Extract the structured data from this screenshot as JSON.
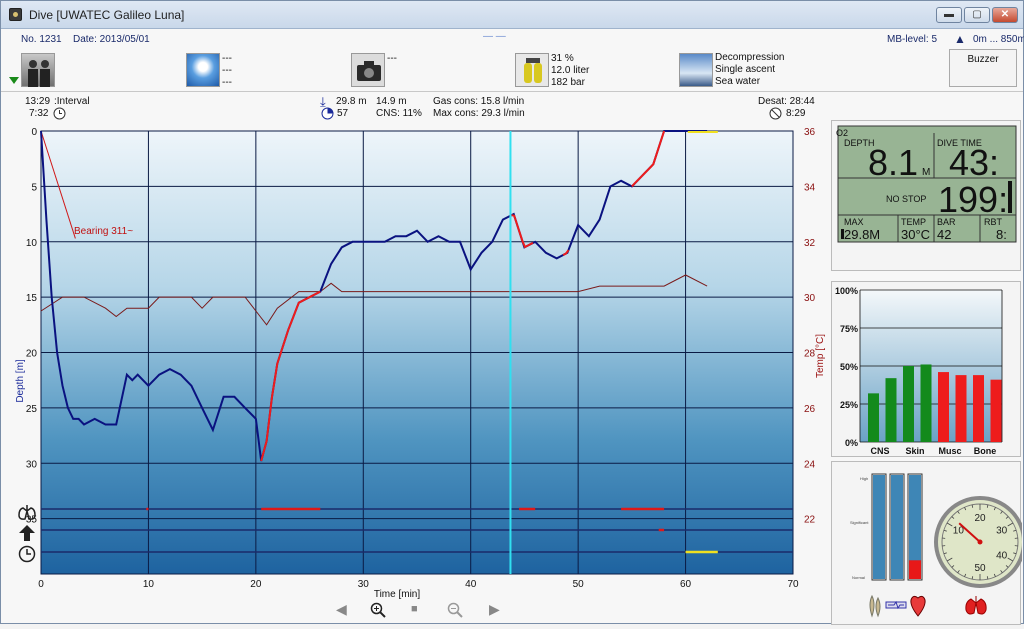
{
  "window": {
    "title": "Dive  [UWATEC Galileo Luna]",
    "minimize": "▬",
    "maximize": "▢",
    "close": "✕"
  },
  "header": {
    "dive_no": "No. 1231",
    "date": "Date: 2013/05/01",
    "center_marks": "—   —",
    "mb_level": "MB-level: 5",
    "altitude": "0m ... 850m",
    "buzzer": "Buzzer",
    "weather_lines": [
      "---",
      "---",
      "---"
    ],
    "camera_line": "---",
    "gas": [
      "31 %",
      "12.0 liter",
      "182 bar"
    ],
    "profile": [
      "Decompression",
      "Single ascent",
      "Sea water",
      "..."
    ]
  },
  "stats": {
    "interval_time": "13:29",
    "interval_label": ":Interval",
    "surface_time": "7:32",
    "max_depth": "29.8 m",
    "avg_depth": "14.9 m",
    "cns_icon_val": "57",
    "cns": "CNS:  11%",
    "gas_cons": "Gas cons: 15.8 l/min",
    "max_cons": "Max cons: 29.3 l/min",
    "desat": "Desat:  28:44",
    "desat2": "8:29"
  },
  "chart_data": {
    "type": "line",
    "xlabel": "Time [min]",
    "ylabel": "Depth [m]",
    "y2label": "Temp [°C]",
    "xlim": [
      0,
      70
    ],
    "ylim": [
      40,
      0
    ],
    "y2lim": [
      20,
      36
    ],
    "x_ticks": [
      0,
      10,
      20,
      30,
      40,
      50,
      60,
      70
    ],
    "y_ticks": [
      0,
      5,
      10,
      15,
      20,
      25,
      30,
      35
    ],
    "y2_ticks": [
      36,
      34,
      32,
      30,
      28,
      26,
      24,
      22
    ],
    "bearing_label": "Bearing 311~",
    "cursor_time": 43.7,
    "depth_series": {
      "name": "Depth",
      "x": [
        0,
        0.5,
        1,
        1.5,
        2,
        2.5,
        3,
        3.5,
        4,
        5,
        6,
        7,
        8,
        8.5,
        9,
        10,
        11,
        12,
        13,
        14,
        15,
        16,
        17,
        18,
        19,
        20,
        20.5,
        21,
        21.5,
        22,
        23,
        24,
        25,
        26,
        27,
        28,
        29,
        30,
        31,
        32,
        33,
        34,
        35,
        36,
        37,
        38,
        39,
        40,
        41,
        42,
        43,
        44,
        45,
        46,
        47,
        48,
        49,
        50,
        51,
        52,
        53,
        54,
        55,
        56,
        57,
        58,
        59,
        60,
        61,
        62
      ],
      "y": [
        0,
        8,
        15,
        20,
        23,
        25,
        26,
        26,
        26.5,
        26,
        26.5,
        26.5,
        22,
        22.5,
        22,
        23,
        22,
        21.5,
        22,
        23,
        25,
        27,
        24,
        24,
        25,
        26,
        29.8,
        28,
        24,
        21,
        18,
        15.5,
        15,
        14.5,
        12,
        10.5,
        10,
        10,
        10,
        10,
        9.5,
        9.5,
        9,
        10,
        9.5,
        10,
        10,
        12.5,
        11,
        10,
        8,
        7.5,
        10.5,
        10,
        11,
        11.5,
        11,
        8.5,
        9.5,
        8,
        5,
        4.5,
        5,
        4,
        3,
        0,
        0,
        0,
        0,
        0
      ],
      "fast_ascent_ranges": [
        [
          20.5,
          26
        ],
        [
          43.8,
          46
        ],
        [
          48.6,
          49.2
        ],
        [
          55,
          58
        ]
      ]
    },
    "temp_series": {
      "name": "Temp",
      "x": [
        0,
        2,
        3,
        4,
        6,
        7,
        8,
        10,
        11,
        12,
        14,
        15,
        16,
        18,
        19,
        20,
        21,
        22,
        24,
        26,
        27,
        28,
        29,
        30,
        32,
        34,
        36,
        38,
        40,
        42,
        44,
        46,
        48,
        50,
        52,
        54,
        56,
        58,
        60,
        62
      ],
      "y": [
        29.5,
        30,
        30,
        30,
        29.6,
        29.3,
        29.6,
        29.6,
        30,
        30,
        30,
        29.6,
        30,
        30,
        30,
        29.5,
        29,
        29.6,
        30.2,
        30.2,
        30.5,
        30.2,
        30.2,
        30.2,
        30.2,
        30.2,
        30.2,
        30.2,
        30.2,
        30.2,
        30.2,
        30.2,
        30.2,
        30.2,
        30.4,
        30.4,
        30.4,
        30.4,
        30.8,
        30.4
      ]
    },
    "warning_bars": [
      {
        "row": "lungs",
        "segments": [
          [
            9.8,
            10
          ],
          [
            20.5,
            26
          ],
          [
            44.5,
            46
          ],
          [
            54,
            58
          ]
        ]
      },
      {
        "row": "ascent",
        "segments": [
          [
            57.5,
            58
          ]
        ]
      },
      {
        "row": "time",
        "segments": [
          [
            60,
            63
          ]
        ]
      }
    ]
  },
  "computer_display": {
    "o2_label": "O2",
    "depth_label": "DEPTH",
    "depth_value": "8.1",
    "depth_unit": "M",
    "divetime_label": "DIVE TIME",
    "divetime_value": "43:",
    "nostop_label": "NO STOP",
    "nostop_value": "199:",
    "max_label": "MAX",
    "max_value": "29.8M",
    "temp_label": "TEMP",
    "temp_value": "30°C",
    "bar_label": "BAR",
    "bar_value": "42",
    "rbt_label": "RBT",
    "rbt_value": "8:"
  },
  "tissue_chart": {
    "type": "bar",
    "y_ticks": [
      "100%",
      "75%",
      "50%",
      "25%",
      "0%"
    ],
    "categories": [
      "CNS",
      "Skin",
      "Musc",
      "Bone"
    ],
    "values": [
      32,
      42,
      50,
      51,
      46,
      44,
      44,
      41
    ],
    "colors": [
      "#138a1c",
      "#138a1c",
      "#138a1c",
      "#138a1c",
      "#ee1c1c",
      "#ee1c1c",
      "#ee1c1c",
      "#ee1c1c"
    ]
  },
  "workload": {
    "labels": [
      "High",
      "Significant",
      "Normal"
    ],
    "levels": [
      0,
      0,
      0.18
    ]
  },
  "gauge": {
    "ticks": [
      "10",
      "20",
      "30",
      "40",
      "50"
    ],
    "value": 12
  },
  "icons": {
    "lungs": "lungs-icon",
    "ascent": "ascent-icon",
    "clock": "clock-icon",
    "zoom_in": "zoom-in-icon",
    "zoom_out": "zoom-out-icon",
    "prev": "prev-icon",
    "next": "next-icon"
  }
}
